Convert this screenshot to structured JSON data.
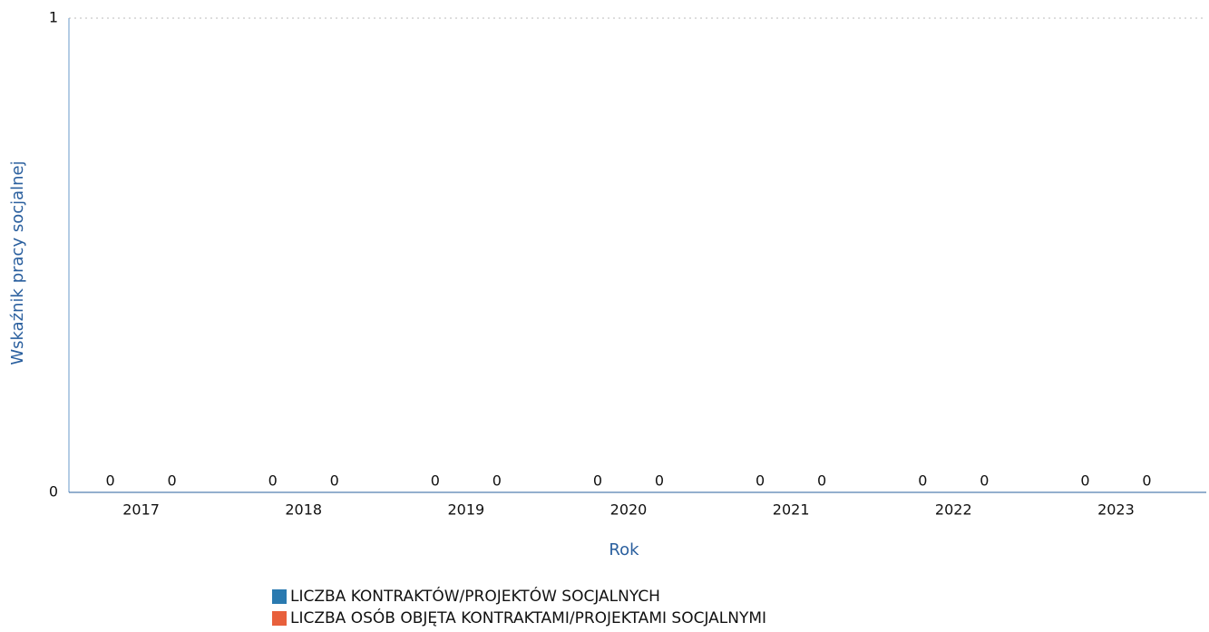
{
  "chart_data": {
    "type": "bar",
    "ylabel": "Wskaźnik pracy socjalnej",
    "xlabel": "Rok",
    "categories": [
      "2017",
      "2018",
      "2019",
      "2020",
      "2021",
      "2022",
      "2023"
    ],
    "series": [
      {
        "name": "LICZBA KONTRAKTÓW/PROJEKTÓW SOCJALNYCH",
        "color": "#2a7ab0",
        "values": [
          0,
          0,
          0,
          0,
          0,
          0,
          0
        ]
      },
      {
        "name": "LICZBA OSÓB OBJĘTA KONTRAKTAMI/PROJEKTAMI SOCJALNYMI",
        "color": "#e8603c",
        "values": [
          0,
          0,
          0,
          0,
          0,
          0,
          0
        ]
      }
    ],
    "ylim": [
      0,
      1
    ],
    "yticks": [
      0,
      1
    ],
    "grid": true,
    "legend": "bottom"
  }
}
